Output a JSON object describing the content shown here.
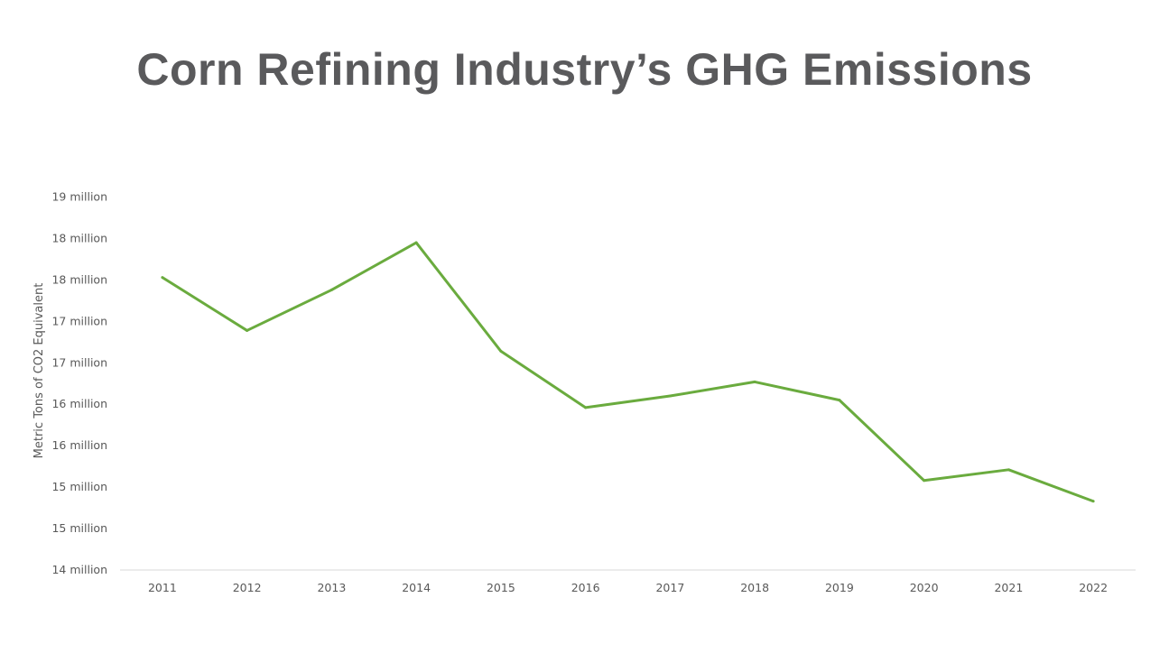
{
  "chart_data": {
    "type": "line",
    "title": "Corn Refining Industry’s GHG Emissions",
    "xlabel": "",
    "ylabel": "Metric Tons of CO2 Equivalent",
    "categories": [
      "2011",
      "2012",
      "2013",
      "2014",
      "2015",
      "2016",
      "2017",
      "2018",
      "2019",
      "2020",
      "2021",
      "2022"
    ],
    "series": [
      {
        "values": [
          17.53,
          16.89,
          17.38,
          17.95,
          16.64,
          15.96,
          16.1,
          16.27,
          16.05,
          15.08,
          15.21,
          14.83
        ],
        "color": "#6aab3e"
      }
    ],
    "ylim": [
      14,
      18.5
    ],
    "ytick_values": [
      14,
      14.5,
      15,
      15.5,
      16,
      16.5,
      17,
      17.5,
      18,
      18.5
    ],
    "ytick_labels": [
      "14 million",
      "15 million",
      "15 million",
      "16 million",
      "16 million",
      "17 million",
      "17 million",
      "18 million",
      "18 million",
      "19 million"
    ],
    "grid": false,
    "legend": "none"
  }
}
